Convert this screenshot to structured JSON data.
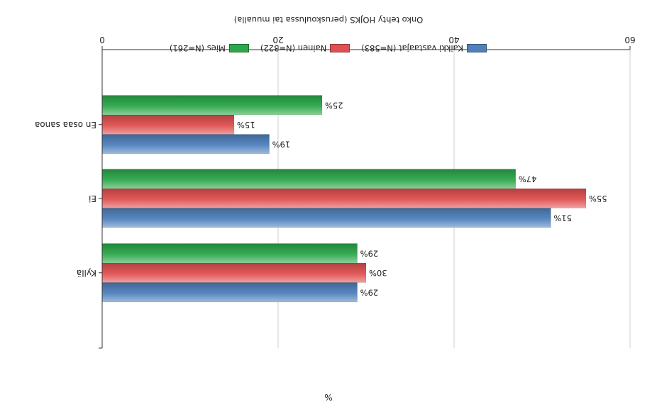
{
  "chart_data": {
    "type": "bar",
    "orientation": "horizontal",
    "rendered_rotation_deg": 180,
    "title": "Onko tehty HOJKS (peruskoulussa tai muualla)",
    "xlabel": "%",
    "xlim": [
      0,
      60
    ],
    "xticks": [
      "0",
      "20",
      "40",
      "60"
    ],
    "grid": true,
    "legend_position": "bottom",
    "categories": [
      "En osaa sanoa",
      "Ei",
      "Kyllä"
    ],
    "series": [
      {
        "name": "Kaikki vastaajat (N=583)",
        "color": "#4f81bd",
        "values": [
          19,
          51,
          29
        ],
        "labels": [
          "19%",
          "51%",
          "29%"
        ]
      },
      {
        "name": "Nainen (N=322)",
        "color": "#e05050",
        "values": [
          15,
          55,
          30
        ],
        "labels": [
          "15%",
          "55%",
          "30%"
        ]
      },
      {
        "name": "Mies (N=261)",
        "color": "#2ca84a",
        "values": [
          25,
          47,
          29
        ],
        "labels": [
          "25%",
          "47%",
          "29%"
        ]
      }
    ]
  }
}
